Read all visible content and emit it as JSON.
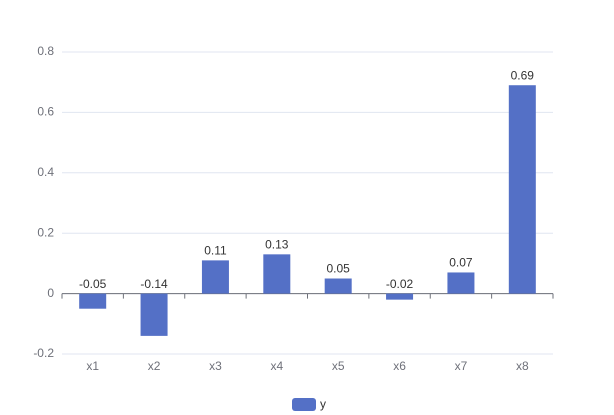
{
  "chart_data": {
    "type": "bar",
    "categories": [
      "x1",
      "x2",
      "x3",
      "x4",
      "x5",
      "x6",
      "x7",
      "x8"
    ],
    "series": [
      {
        "name": "y",
        "color": "#5470c6",
        "values": [
          -0.05,
          -0.14,
          0.11,
          0.13,
          0.05,
          -0.02,
          0.07,
          0.69
        ]
      }
    ],
    "ylim": [
      -0.2,
      0.8
    ],
    "yticks": [
      -0.2,
      0,
      0.2,
      0.4,
      0.6,
      0.8
    ],
    "grid": true,
    "legend": "bottom"
  }
}
